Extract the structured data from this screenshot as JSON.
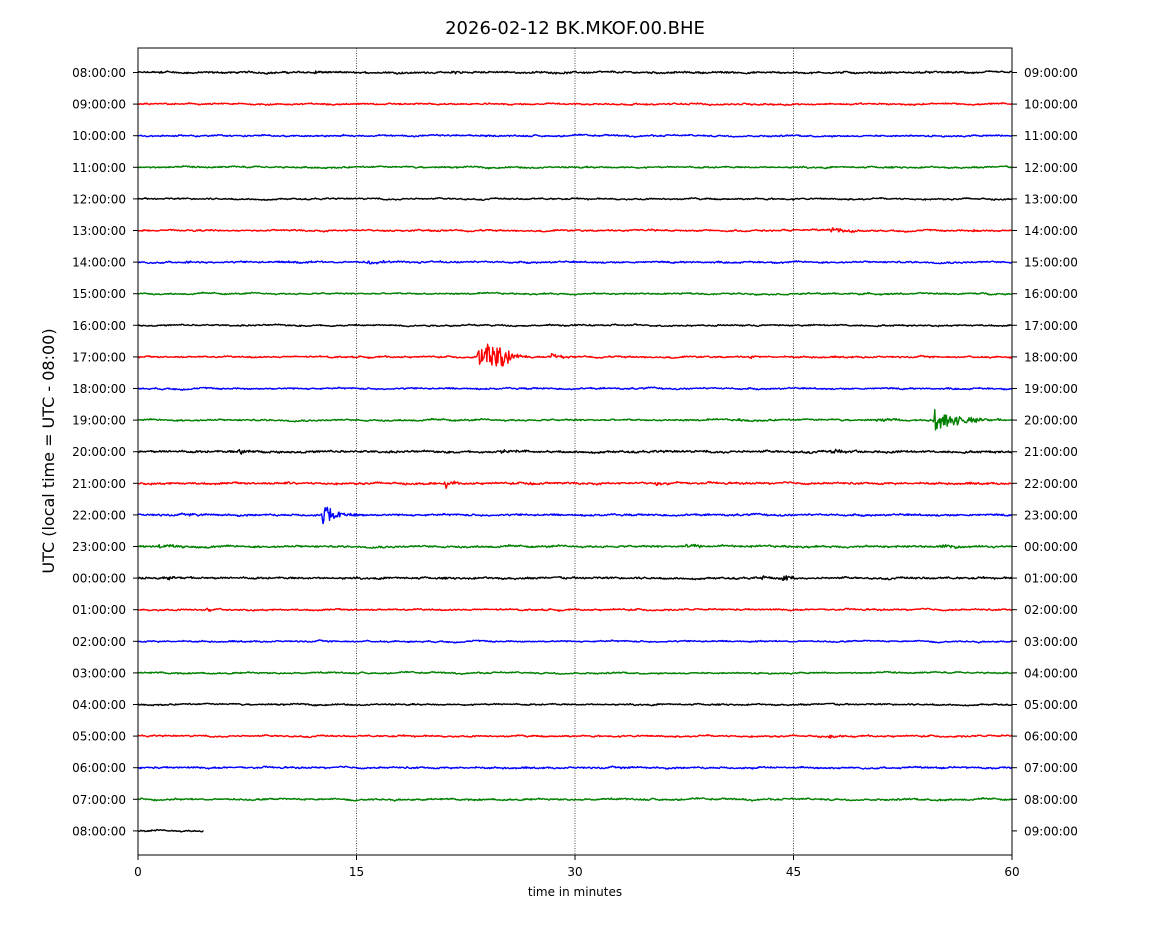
{
  "chart_data": {
    "type": "line",
    "title": "2026-02-12 BK.MKOF.00.BHE",
    "xlabel": "time in minutes",
    "ylabel": "UTC (local time = UTC - 08:00)",
    "xlim": [
      0,
      60
    ],
    "x_ticks": [
      0,
      15,
      30,
      45,
      60
    ],
    "vertical_gridlines": [
      15,
      30,
      45
    ],
    "left_tick_labels": [
      "08:00:00",
      "09:00:00",
      "10:00:00",
      "11:00:00",
      "12:00:00",
      "13:00:00",
      "14:00:00",
      "15:00:00",
      "16:00:00",
      "17:00:00",
      "18:00:00",
      "19:00:00",
      "20:00:00",
      "21:00:00",
      "22:00:00",
      "23:00:00",
      "00:00:00",
      "01:00:00",
      "02:00:00",
      "03:00:00",
      "04:00:00",
      "05:00:00",
      "06:00:00",
      "07:00:00",
      "08:00:00"
    ],
    "right_tick_labels": [
      "09:00:00",
      "10:00:00",
      "11:00:00",
      "12:00:00",
      "13:00:00",
      "14:00:00",
      "15:00:00",
      "16:00:00",
      "17:00:00",
      "18:00:00",
      "19:00:00",
      "20:00:00",
      "21:00:00",
      "22:00:00",
      "23:00:00",
      "00:00:00",
      "01:00:00",
      "02:00:00",
      "03:00:00",
      "04:00:00",
      "05:00:00",
      "06:00:00",
      "07:00:00",
      "08:00:00",
      "09:00:00"
    ],
    "trace_color_cycle": [
      "#000000",
      "#ff0000",
      "#0000ff",
      "#008000"
    ],
    "traces": [
      {
        "start": "08:00:00",
        "end_minute": 60,
        "noise": 0.28,
        "events": [
          {
            "t": 1.5,
            "amp": 0.6,
            "dur": 0.6
          },
          {
            "t": 12.2,
            "amp": 0.7,
            "dur": 0.5
          },
          {
            "t": 21.8,
            "amp": 0.6,
            "dur": 0.6
          }
        ]
      },
      {
        "start": "09:00:00",
        "end_minute": 60,
        "noise": 0.22,
        "events": [
          {
            "t": 13.0,
            "amp": 0.6,
            "dur": 0.2
          }
        ]
      },
      {
        "start": "10:00:00",
        "end_minute": 60,
        "noise": 0.22,
        "events": []
      },
      {
        "start": "11:00:00",
        "end_minute": 60,
        "noise": 0.22,
        "events": []
      },
      {
        "start": "12:00:00",
        "end_minute": 60,
        "noise": 0.2,
        "events": []
      },
      {
        "start": "13:00:00",
        "end_minute": 60,
        "noise": 0.22,
        "events": [
          {
            "t": 47.6,
            "amp": 1.2,
            "dur": 1.2
          },
          {
            "t": 57.4,
            "amp": 0.6,
            "dur": 0.3
          }
        ]
      },
      {
        "start": "14:00:00",
        "end_minute": 60,
        "noise": 0.25,
        "events": [
          {
            "t": 3.3,
            "amp": 0.6,
            "dur": 0.5
          },
          {
            "t": 10.4,
            "amp": 0.6,
            "dur": 0.8
          },
          {
            "t": 15.8,
            "amp": 0.7,
            "dur": 1.8
          }
        ]
      },
      {
        "start": "15:00:00",
        "end_minute": 60,
        "noise": 0.2,
        "events": []
      },
      {
        "start": "16:00:00",
        "end_minute": 60,
        "noise": 0.2,
        "events": []
      },
      {
        "start": "17:00:00",
        "end_minute": 60,
        "noise": 0.22,
        "events": [
          {
            "t": 23.4,
            "amp": 3.5,
            "dur": 1.2
          },
          {
            "t": 24.0,
            "amp": 7.5,
            "dur": 0.5
          },
          {
            "t": 24.6,
            "amp": 5.5,
            "dur": 0.6
          },
          {
            "t": 25.3,
            "amp": 2.2,
            "dur": 0.6
          },
          {
            "t": 28.4,
            "amp": 1.8,
            "dur": 0.4
          },
          {
            "t": 42.0,
            "amp": 0.9,
            "dur": 0.2
          }
        ]
      },
      {
        "start": "18:00:00",
        "end_minute": 60,
        "noise": 0.22,
        "events": []
      },
      {
        "start": "19:00:00",
        "end_minute": 60,
        "noise": 0.25,
        "events": [
          {
            "t": 41.2,
            "amp": 0.6,
            "dur": 0.4
          },
          {
            "t": 50.8,
            "amp": 0.8,
            "dur": 1.0
          },
          {
            "t": 54.7,
            "amp": 4.5,
            "dur": 1.6
          }
        ]
      },
      {
        "start": "20:00:00",
        "end_minute": 60,
        "noise": 0.35,
        "events": [
          {
            "t": 6.9,
            "amp": 1.5,
            "dur": 0.5
          },
          {
            "t": 25.0,
            "amp": 0.7,
            "dur": 1.2
          },
          {
            "t": 47.5,
            "amp": 0.6,
            "dur": 1.5
          }
        ]
      },
      {
        "start": "21:00:00",
        "end_minute": 60,
        "noise": 0.3,
        "events": [
          {
            "t": 10.1,
            "amp": 0.8,
            "dur": 0.3
          },
          {
            "t": 21.1,
            "amp": 2.2,
            "dur": 0.3
          },
          {
            "t": 26.9,
            "amp": 0.9,
            "dur": 0.2
          },
          {
            "t": 35.6,
            "amp": 0.8,
            "dur": 0.6
          }
        ]
      },
      {
        "start": "22:00:00",
        "end_minute": 60,
        "noise": 0.28,
        "events": [
          {
            "t": 3.6,
            "amp": 0.6,
            "dur": 0.3
          },
          {
            "t": 12.7,
            "amp": 4.0,
            "dur": 1.0
          }
        ]
      },
      {
        "start": "23:00:00",
        "end_minute": 60,
        "noise": 0.3,
        "events": [
          {
            "t": 1.5,
            "amp": 0.6,
            "dur": 1.2
          },
          {
            "t": 37.5,
            "amp": 0.6,
            "dur": 1.5
          },
          {
            "t": 55.0,
            "amp": 0.6,
            "dur": 1.2
          }
        ]
      },
      {
        "start": "00:00:00",
        "end_minute": 60,
        "noise": 0.3,
        "events": [
          {
            "t": 2.0,
            "amp": 0.6,
            "dur": 1.0
          },
          {
            "t": 42.7,
            "amp": 1.2,
            "dur": 0.3
          },
          {
            "t": 44.3,
            "amp": 1.3,
            "dur": 0.6
          }
        ]
      },
      {
        "start": "01:00:00",
        "end_minute": 60,
        "noise": 0.22,
        "events": [
          {
            "t": 4.7,
            "amp": 0.7,
            "dur": 0.4
          }
        ]
      },
      {
        "start": "02:00:00",
        "end_minute": 60,
        "noise": 0.2,
        "events": [
          {
            "t": 42.0,
            "amp": 0.5,
            "dur": 0.3
          }
        ]
      },
      {
        "start": "03:00:00",
        "end_minute": 60,
        "noise": 0.2,
        "events": []
      },
      {
        "start": "04:00:00",
        "end_minute": 60,
        "noise": 0.2,
        "events": []
      },
      {
        "start": "05:00:00",
        "end_minute": 60,
        "noise": 0.22,
        "events": [
          {
            "t": 47.5,
            "amp": 0.7,
            "dur": 0.5
          }
        ]
      },
      {
        "start": "06:00:00",
        "end_minute": 60,
        "noise": 0.25,
        "events": [
          {
            "t": 33.6,
            "amp": 0.6,
            "dur": 0.4
          }
        ]
      },
      {
        "start": "07:00:00",
        "end_minute": 60,
        "noise": 0.25,
        "events": [
          {
            "t": 54.9,
            "amp": 0.6,
            "dur": 0.2
          }
        ]
      },
      {
        "start": "08:00:00",
        "end_minute": 4.5,
        "noise": 0.22,
        "events": []
      }
    ]
  }
}
